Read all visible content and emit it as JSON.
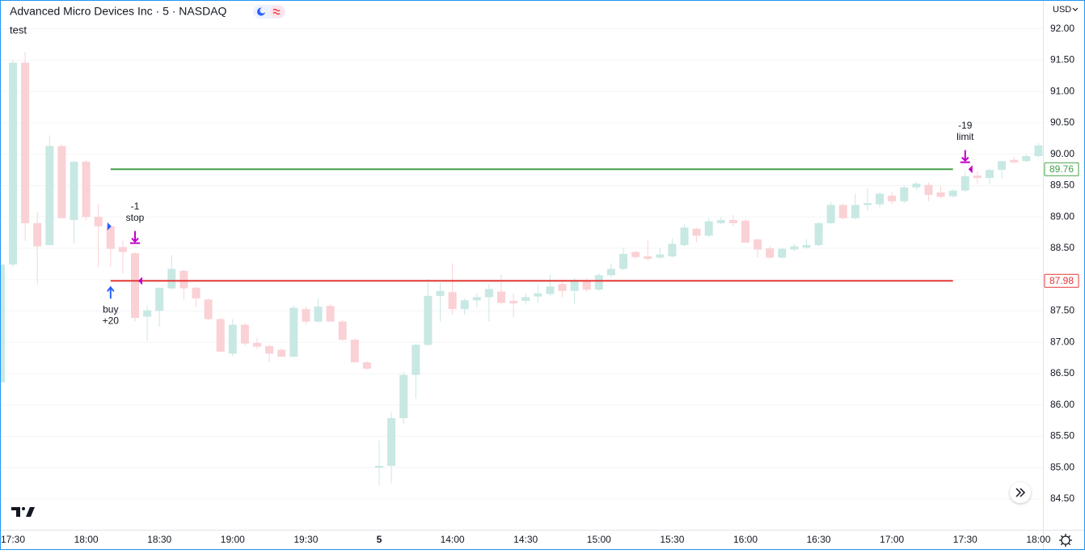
{
  "chart_data": {
    "type": "candlestick",
    "title": "Advanced Micro Devices Inc · 5 · NASDAQ",
    "subtitle": "test",
    "currency": "USD",
    "up_color": "#c8e8e3",
    "down_color": "#fad1d5",
    "grid": true,
    "ylim": [
      84.01,
      92.46
    ],
    "yticks": [
      {
        "value": 84.5,
        "label": "84.50"
      },
      {
        "value": 85,
        "label": "85.00"
      },
      {
        "value": 85.5,
        "label": "85.50"
      },
      {
        "value": 86,
        "label": "86.00"
      },
      {
        "value": 86.5,
        "label": "86.50"
      },
      {
        "value": 87,
        "label": "87.00"
      },
      {
        "value": 87.5,
        "label": "87.50"
      },
      {
        "value": 88,
        "label": "88.00"
      },
      {
        "value": 88.5,
        "label": "88.50"
      },
      {
        "value": 89,
        "label": "89.00"
      },
      {
        "value": 89.5,
        "label": "89.50"
      },
      {
        "value": 90,
        "label": "90.00"
      },
      {
        "value": 90.5,
        "label": "90.50"
      },
      {
        "value": 91,
        "label": "91.00"
      },
      {
        "value": 91.5,
        "label": "91.50"
      },
      {
        "value": 92,
        "label": "92.00"
      }
    ],
    "categories": [
      null,
      "17:30",
      null,
      null,
      null,
      null,
      null,
      "18:00",
      null,
      null,
      null,
      null,
      null,
      "18:30",
      null,
      null,
      null,
      null,
      null,
      "19:00",
      null,
      null,
      null,
      null,
      null,
      "19:30",
      null,
      null,
      null,
      null,
      null,
      "5",
      null,
      null,
      null,
      null,
      null,
      "14:00",
      null,
      null,
      null,
      null,
      null,
      "14:30",
      null,
      null,
      null,
      null,
      null,
      "15:00",
      null,
      null,
      null,
      null,
      null,
      "15:30",
      null,
      null,
      null,
      null,
      null,
      "16:00",
      null,
      null,
      null,
      null,
      null,
      "16:30",
      null,
      null,
      null,
      null,
      null,
      "17:00",
      null,
      null,
      null,
      null,
      null,
      "17:30",
      null,
      null,
      null,
      null,
      null,
      "18:00"
    ],
    "open": [
      86.36,
      88.24,
      91.46,
      88.9,
      88.55,
      90.13,
      88.95,
      89.88,
      89.0,
      88.85,
      88.52,
      88.42,
      87.41,
      87.5,
      87.86,
      88.14,
      87.87,
      87.68,
      87.37,
      86.82,
      87.28,
      86.99,
      86.94,
      86.88,
      86.77,
      87.53,
      87.33,
      87.58,
      87.33,
      87.04,
      86.68,
      85.0,
      85.03,
      85.79,
      86.48,
      86.96,
      87.74,
      87.8,
      87.53,
      87.67,
      87.72,
      87.81,
      87.66,
      87.66,
      87.73,
      87.77,
      87.93,
      87.82,
      87.99,
      87.84,
      88.07,
      88.17,
      88.44,
      88.37,
      88.35,
      88.37,
      88.55,
      88.81,
      88.7,
      88.9,
      88.95,
      88.94,
      88.64,
      88.5,
      88.35,
      88.48,
      88.51,
      88.55,
      88.9,
      89.19,
      88.98,
      89.19,
      89.2,
      89.34,
      89.25,
      89.47,
      89.51,
      89.39,
      89.33,
      89.42,
      89.66,
      89.62,
      89.75,
      89.91,
      89.89,
      89.97
    ],
    "high": [
      88.24,
      91.5,
      91.63,
      89.08,
      90.3,
      90.16,
      89.9,
      89.9,
      89.21,
      88.87,
      88.62,
      88.44,
      87.59,
      87.87,
      88.39,
      88.16,
      87.89,
      87.7,
      87.39,
      87.37,
      87.3,
      87.07,
      86.96,
      86.9,
      87.59,
      87.57,
      87.69,
      87.6,
      87.35,
      87.06,
      86.7,
      85.43,
      85.88,
      86.53,
      86.98,
      88.01,
      87.95,
      88.26,
      87.7,
      87.78,
      87.93,
      88.08,
      87.78,
      87.78,
      87.93,
      88.08,
      88.0,
      88.03,
      88.02,
      88.1,
      88.26,
      88.51,
      88.46,
      88.63,
      88.5,
      88.66,
      88.89,
      88.83,
      88.98,
      89.0,
      89.03,
      88.96,
      88.66,
      88.53,
      88.51,
      88.57,
      88.65,
      88.92,
      89.24,
      89.21,
      89.37,
      89.46,
      89.4,
      89.4,
      89.51,
      89.56,
      89.55,
      89.49,
      89.44,
      89.73,
      89.73,
      89.77,
      89.89,
      89.96,
      89.99,
      90.18
    ],
    "low": [
      86.36,
      88.2,
      88.62,
      87.92,
      88.55,
      88.98,
      88.57,
      88.95,
      88.2,
      88.2,
      88.1,
      87.33,
      87.02,
      87.25,
      87.84,
      87.69,
      87.56,
      87.35,
      86.85,
      86.78,
      86.94,
      86.89,
      86.68,
      86.77,
      86.77,
      87.28,
      87.31,
      87.33,
      87.02,
      86.68,
      86.56,
      84.72,
      84.75,
      85.7,
      86.1,
      86.94,
      87.33,
      87.45,
      87.44,
      87.56,
      87.33,
      87.6,
      87.4,
      87.6,
      87.63,
      87.73,
      87.72,
      87.62,
      87.8,
      87.82,
      88.03,
      88.15,
      88.33,
      88.3,
      88.33,
      88.35,
      88.53,
      88.6,
      88.68,
      88.88,
      88.85,
      88.59,
      88.35,
      88.33,
      88.33,
      88.46,
      88.49,
      88.53,
      88.88,
      88.96,
      88.96,
      89.1,
      89.15,
      89.2,
      89.22,
      89.43,
      89.25,
      89.3,
      89.31,
      89.4,
      89.53,
      89.52,
      89.62,
      89.85,
      89.87,
      89.95
    ],
    "close": [
      88.24,
      91.46,
      88.9,
      88.53,
      90.13,
      88.98,
      89.88,
      89.0,
      88.85,
      88.49,
      88.44,
      87.39,
      87.51,
      87.87,
      88.17,
      87.86,
      87.7,
      87.37,
      86.85,
      87.28,
      86.98,
      86.93,
      86.82,
      86.77,
      87.55,
      87.33,
      87.57,
      87.33,
      87.04,
      86.68,
      86.58,
      85.03,
      85.79,
      86.48,
      86.96,
      87.74,
      87.82,
      87.53,
      87.67,
      87.72,
      87.85,
      87.63,
      87.62,
      87.72,
      87.78,
      87.89,
      87.82,
      87.97,
      87.84,
      88.07,
      88.17,
      88.41,
      88.36,
      88.33,
      88.4,
      88.57,
      88.83,
      88.7,
      88.93,
      88.95,
      88.9,
      88.59,
      88.48,
      88.35,
      88.49,
      88.53,
      88.55,
      88.9,
      89.19,
      88.98,
      89.19,
      89.22,
      89.37,
      89.25,
      89.47,
      89.53,
      89.35,
      89.32,
      89.42,
      89.65,
      89.62,
      89.75,
      89.89,
      89.87,
      89.97,
      90.14
    ],
    "lines": [
      {
        "value": 89.76,
        "color": "#43a047",
        "x_start": 9,
        "x_end": 78
      },
      {
        "value": 87.98,
        "color": "#e53935",
        "x_start": 9,
        "x_end": 78
      }
    ],
    "annotations": [
      {
        "index": 9,
        "price": 88.85,
        "text": [
          "buy",
          "+20"
        ],
        "direction": "up",
        "color": "#2962ff"
      },
      {
        "index": 11,
        "price": 87.98,
        "text": [
          "-1",
          "stop"
        ],
        "direction": "down",
        "color": "#c000c8"
      },
      {
        "index": 79,
        "price": 89.76,
        "text": [
          "-19",
          "limit"
        ],
        "direction": "down",
        "color": "#c000c8"
      }
    ]
  }
}
